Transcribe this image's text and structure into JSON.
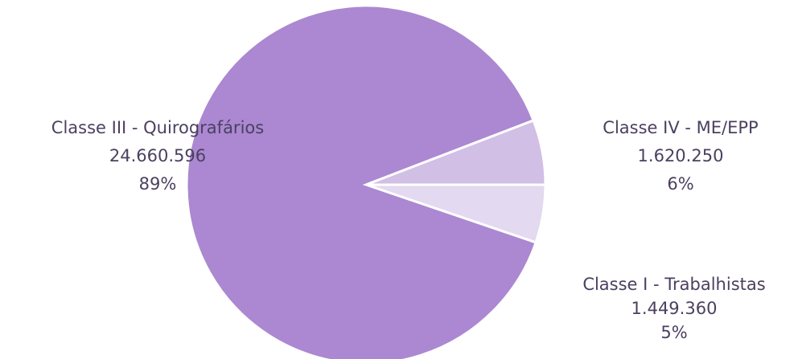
{
  "chart_data": {
    "type": "pie",
    "categories": [
      "Classe I - Trabalhistas",
      "Classe III - Quirografários",
      "Classe IV - ME/EPP"
    ],
    "values": [
      1449360,
      24660596,
      1620250
    ],
    "value_labels": [
      "1.449.360",
      "24.660.596",
      "1.620.250"
    ],
    "percent_labels": [
      "5%",
      "89%",
      "6%"
    ],
    "colors": [
      "#e3d9f0",
      "#ab88d1",
      "#d1bfe5"
    ]
  }
}
